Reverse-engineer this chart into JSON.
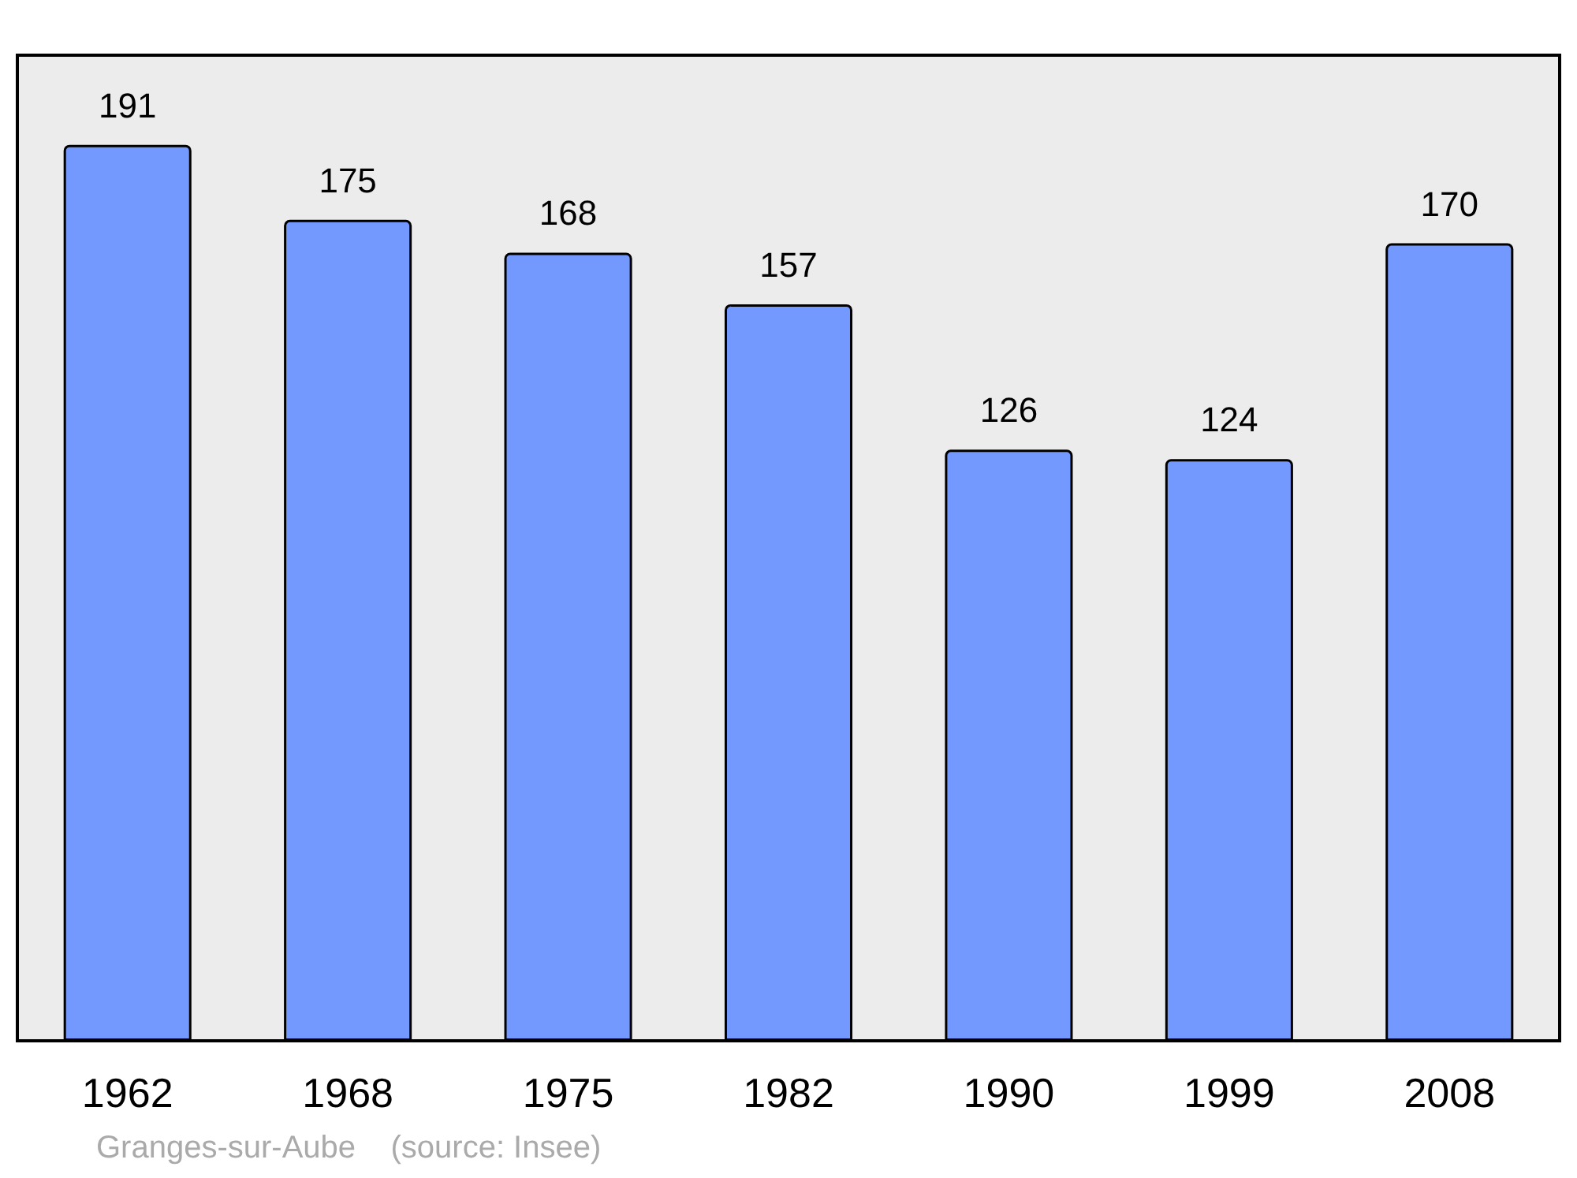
{
  "chart_data": {
    "type": "bar",
    "categories": [
      "1962",
      "1968",
      "1975",
      "1982",
      "1990",
      "1999",
      "2008"
    ],
    "values": [
      191,
      175,
      168,
      157,
      126,
      124,
      170
    ],
    "color": "#7399ff",
    "data_labels": true,
    "grid": false,
    "annotations": [
      "Granges-sur-Aube    (source: Insee)"
    ]
  }
}
